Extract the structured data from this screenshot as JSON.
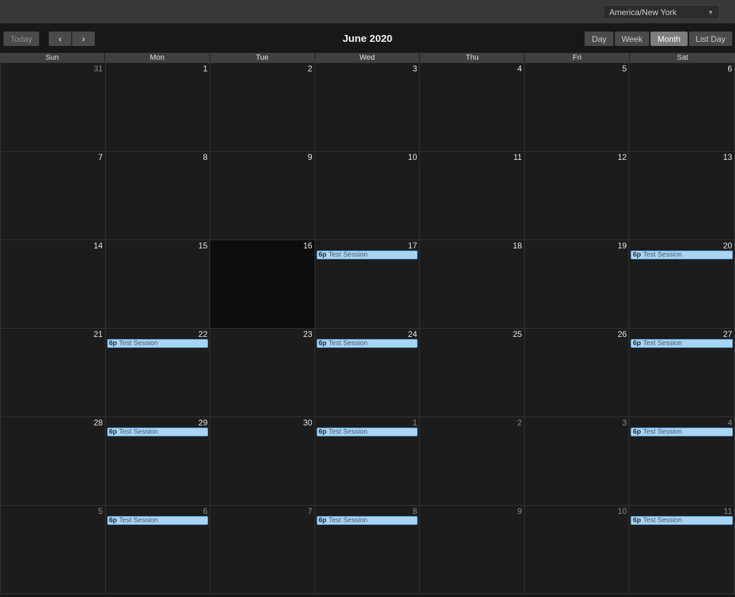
{
  "topbar": {
    "timezone": {
      "value": "America/New York",
      "caret_icon": "▼"
    }
  },
  "toolbar": {
    "today_label": "Today",
    "prev_icon": "‹",
    "next_icon": "›",
    "title": "June 2020",
    "active_view": "Month",
    "views": [
      {
        "label": "Day"
      },
      {
        "label": "Week"
      },
      {
        "label": "Month"
      },
      {
        "label": "List Day"
      }
    ]
  },
  "calendar": {
    "day_headers": [
      "Sun",
      "Mon",
      "Tue",
      "Wed",
      "Thu",
      "Fri",
      "Sat"
    ],
    "event_colors": {
      "background": "#a9d4f3",
      "border": "#4e94cc",
      "time_text": "#20303e",
      "title_text": "#45576a"
    },
    "weeks": [
      {
        "days": [
          {
            "day": "31",
            "other_month": true,
            "today": false,
            "events": []
          },
          {
            "day": "1",
            "other_month": false,
            "today": false,
            "events": []
          },
          {
            "day": "2",
            "other_month": false,
            "today": false,
            "events": []
          },
          {
            "day": "3",
            "other_month": false,
            "today": false,
            "events": []
          },
          {
            "day": "4",
            "other_month": false,
            "today": false,
            "events": []
          },
          {
            "day": "5",
            "other_month": false,
            "today": false,
            "events": []
          },
          {
            "day": "6",
            "other_month": false,
            "today": false,
            "events": []
          }
        ]
      },
      {
        "days": [
          {
            "day": "7",
            "other_month": false,
            "today": false,
            "events": []
          },
          {
            "day": "8",
            "other_month": false,
            "today": false,
            "events": []
          },
          {
            "day": "9",
            "other_month": false,
            "today": false,
            "events": []
          },
          {
            "day": "10",
            "other_month": false,
            "today": false,
            "events": []
          },
          {
            "day": "11",
            "other_month": false,
            "today": false,
            "events": []
          },
          {
            "day": "12",
            "other_month": false,
            "today": false,
            "events": []
          },
          {
            "day": "13",
            "other_month": false,
            "today": false,
            "events": []
          }
        ]
      },
      {
        "days": [
          {
            "day": "14",
            "other_month": false,
            "today": false,
            "events": []
          },
          {
            "day": "15",
            "other_month": false,
            "today": false,
            "events": []
          },
          {
            "day": "16",
            "other_month": false,
            "today": true,
            "events": []
          },
          {
            "day": "17",
            "other_month": false,
            "today": false,
            "events": [
              {
                "time": "6p",
                "title": "Test Session"
              }
            ]
          },
          {
            "day": "18",
            "other_month": false,
            "today": false,
            "events": []
          },
          {
            "day": "19",
            "other_month": false,
            "today": false,
            "events": []
          },
          {
            "day": "20",
            "other_month": false,
            "today": false,
            "events": [
              {
                "time": "6p",
                "title": "Test Session"
              }
            ]
          }
        ]
      },
      {
        "days": [
          {
            "day": "21",
            "other_month": false,
            "today": false,
            "events": []
          },
          {
            "day": "22",
            "other_month": false,
            "today": false,
            "events": [
              {
                "time": "6p",
                "title": "Test Session"
              }
            ]
          },
          {
            "day": "23",
            "other_month": false,
            "today": false,
            "events": []
          },
          {
            "day": "24",
            "other_month": false,
            "today": false,
            "events": [
              {
                "time": "6p",
                "title": "Test Session"
              }
            ]
          },
          {
            "day": "25",
            "other_month": false,
            "today": false,
            "events": []
          },
          {
            "day": "26",
            "other_month": false,
            "today": false,
            "events": []
          },
          {
            "day": "27",
            "other_month": false,
            "today": false,
            "events": [
              {
                "time": "6p",
                "title": "Test Session"
              }
            ]
          }
        ]
      },
      {
        "days": [
          {
            "day": "28",
            "other_month": false,
            "today": false,
            "events": []
          },
          {
            "day": "29",
            "other_month": false,
            "today": false,
            "events": [
              {
                "time": "6p",
                "title": "Test Session"
              }
            ]
          },
          {
            "day": "30",
            "other_month": false,
            "today": false,
            "events": []
          },
          {
            "day": "1",
            "other_month": true,
            "today": false,
            "events": [
              {
                "time": "6p",
                "title": "Test Session"
              }
            ]
          },
          {
            "day": "2",
            "other_month": true,
            "today": false,
            "events": []
          },
          {
            "day": "3",
            "other_month": true,
            "today": false,
            "events": []
          },
          {
            "day": "4",
            "other_month": true,
            "today": false,
            "events": [
              {
                "time": "6p",
                "title": "Test Session"
              }
            ]
          }
        ]
      },
      {
        "days": [
          {
            "day": "5",
            "other_month": true,
            "today": false,
            "events": []
          },
          {
            "day": "6",
            "other_month": true,
            "today": false,
            "events": [
              {
                "time": "6p",
                "title": "Test Session"
              }
            ]
          },
          {
            "day": "7",
            "other_month": true,
            "today": false,
            "events": []
          },
          {
            "day": "8",
            "other_month": true,
            "today": false,
            "events": [
              {
                "time": "6p",
                "title": "Test Session"
              }
            ]
          },
          {
            "day": "9",
            "other_month": true,
            "today": false,
            "events": []
          },
          {
            "day": "10",
            "other_month": true,
            "today": false,
            "events": []
          },
          {
            "day": "11",
            "other_month": true,
            "today": false,
            "events": [
              {
                "time": "6p",
                "title": "Test Session"
              }
            ]
          }
        ]
      }
    ]
  }
}
